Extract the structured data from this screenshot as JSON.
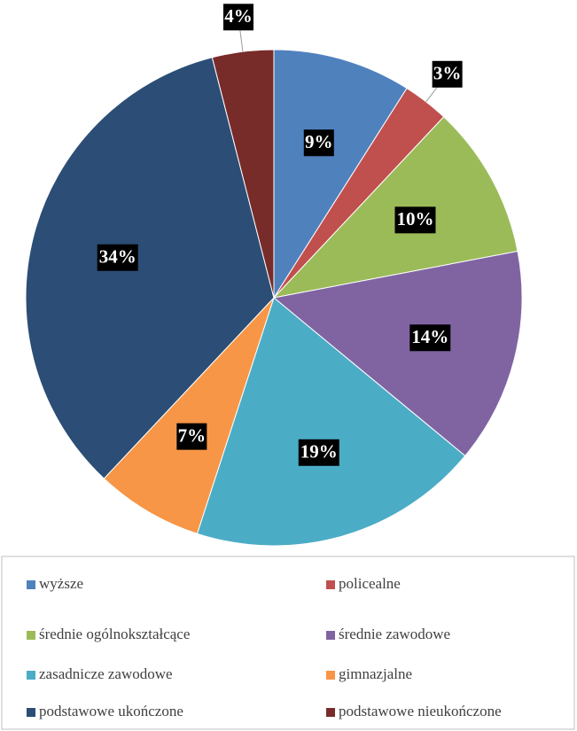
{
  "chart_data": {
    "type": "pie",
    "categories": [
      "wyższe",
      "policealne",
      "średnie ogólnokształcące",
      "średnie zawodowe",
      "zasadnicze zawodowe",
      "gimnazjalne",
      "podstawowe ukończone",
      "podstawowe nieukończone"
    ],
    "values": [
      9,
      3,
      10,
      14,
      19,
      7,
      34,
      4
    ],
    "value_labels": [
      "9%",
      "3%",
      "10%",
      "14%",
      "19%",
      "7%",
      "34%",
      "4%"
    ],
    "colors": [
      "#4f81bd",
      "#c0504d",
      "#9bbb59",
      "#8064a2",
      "#4bacc6",
      "#f79646",
      "#2c4d75",
      "#772c2a"
    ]
  }
}
